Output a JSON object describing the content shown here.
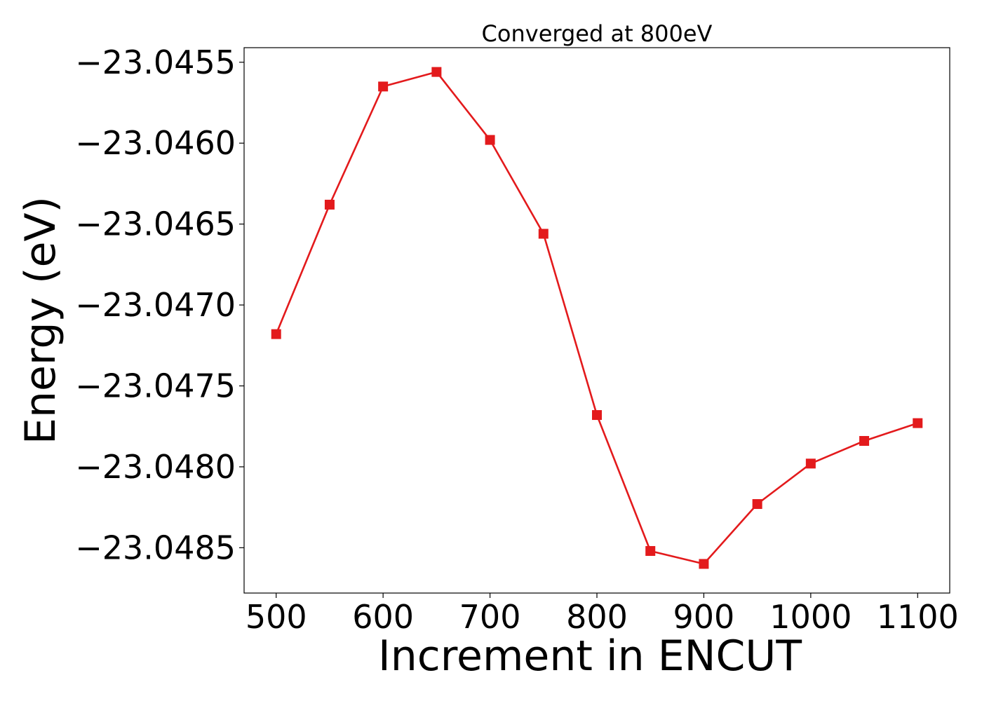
{
  "chart_data": {
    "type": "line",
    "title": "Converged at 800eV",
    "xlabel": "Increment in ENCUT",
    "ylabel": "Energy (eV)",
    "xlim": [
      470,
      1130
    ],
    "ylim": [
      -23.04878,
      -23.04541
    ],
    "x_ticks": [
      500,
      600,
      700,
      800,
      900,
      1000,
      1100
    ],
    "x_tick_labels": [
      "500",
      "600",
      "700",
      "800",
      "900",
      "1000",
      "1100"
    ],
    "y_ticks": [
      -23.0455,
      -23.046,
      -23.0465,
      -23.047,
      -23.0475,
      -23.048,
      -23.0485
    ],
    "y_tick_labels": [
      "−23.0455",
      "−23.0460",
      "−23.0465",
      "−23.0470",
      "−23.0475",
      "−23.0480",
      "−23.0485"
    ],
    "grid": false,
    "series": [
      {
        "color": "#e31a1c",
        "marker": "square",
        "x": [
          500,
          550,
          600,
          650,
          700,
          750,
          800,
          850,
          900,
          950,
          1000,
          1050,
          1100
        ],
        "y": [
          -23.04718,
          -23.04638,
          -23.04565,
          -23.04556,
          -23.04598,
          -23.04656,
          -23.04768,
          -23.04852,
          -23.0486,
          -23.04823,
          -23.04798,
          -23.04784,
          -23.04773
        ]
      }
    ]
  }
}
